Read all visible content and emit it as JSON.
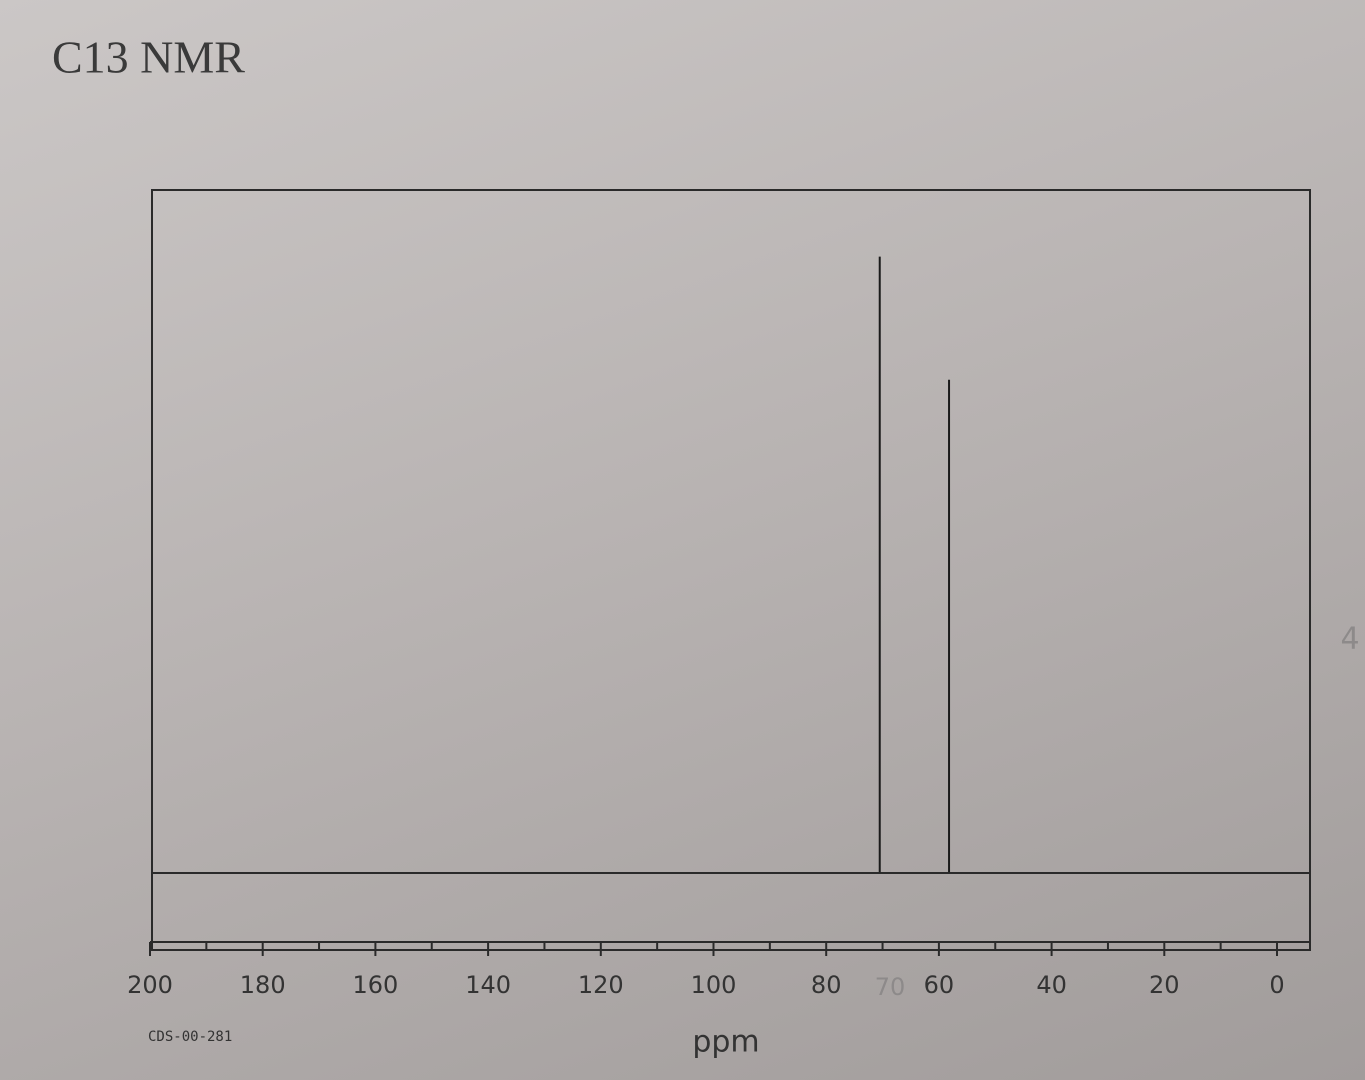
{
  "chart_data": {
    "type": "spectrum",
    "title": "C13 NMR",
    "code": "CDS-00-281",
    "xlabel": "ppm",
    "x": [
      70.5,
      58.2
    ],
    "values": [
      100,
      80
    ],
    "color": "#1a1a1a",
    "xlim": [
      200,
      0
    ],
    "xticks": [
      200,
      180,
      160,
      140,
      120,
      100,
      80,
      60,
      40,
      20,
      0
    ],
    "xminor_ticks": [
      190,
      170,
      150,
      130,
      110,
      90,
      70,
      50,
      30,
      10
    ],
    "ylim": [
      -11,
      110
    ],
    "annotations": [
      "70",
      "4"
    ]
  }
}
